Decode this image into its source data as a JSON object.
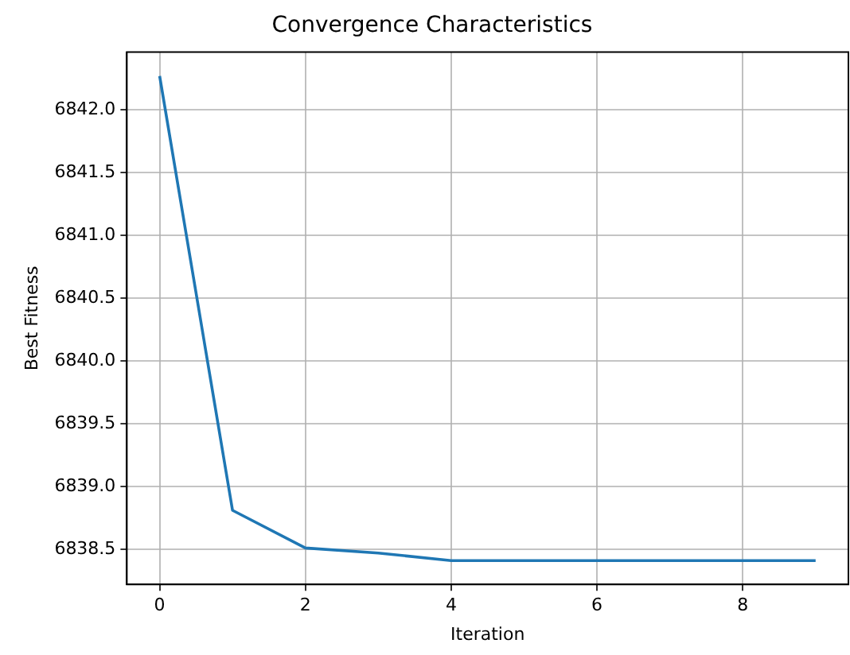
{
  "chart_data": {
    "type": "line",
    "title": "Convergence Characteristics",
    "xlabel": "Iteration",
    "ylabel": "Best Fitness",
    "x": [
      0,
      1,
      2,
      3,
      4,
      5,
      6,
      7,
      8,
      9
    ],
    "series": [
      {
        "color": "#1f77b4",
        "values": [
          6842.27,
          6838.81,
          6838.51,
          6838.47,
          6838.41,
          6838.41,
          6838.41,
          6838.41,
          6838.41,
          6838.41
        ]
      }
    ],
    "xlim": [
      -0.45,
      9.45
    ],
    "xticks": [
      0,
      2,
      4,
      6,
      8
    ],
    "ylim": [
      6838.22,
      6842.46
    ],
    "yticks": [
      {
        "value": 6838.5,
        "label": "6838.5"
      },
      {
        "value": 6839.0,
        "label": "6839.0"
      },
      {
        "value": 6839.5,
        "label": "6839.5"
      },
      {
        "value": 6840.0,
        "label": "6840.0"
      },
      {
        "value": 6840.5,
        "label": "6840.5"
      },
      {
        "value": 6841.0,
        "label": "6841.0"
      },
      {
        "value": 6841.5,
        "label": "6841.5"
      },
      {
        "value": 6842.0,
        "label": "6842.0"
      }
    ],
    "grid": true,
    "legend": false,
    "marker": "none",
    "line_style": "solid"
  }
}
